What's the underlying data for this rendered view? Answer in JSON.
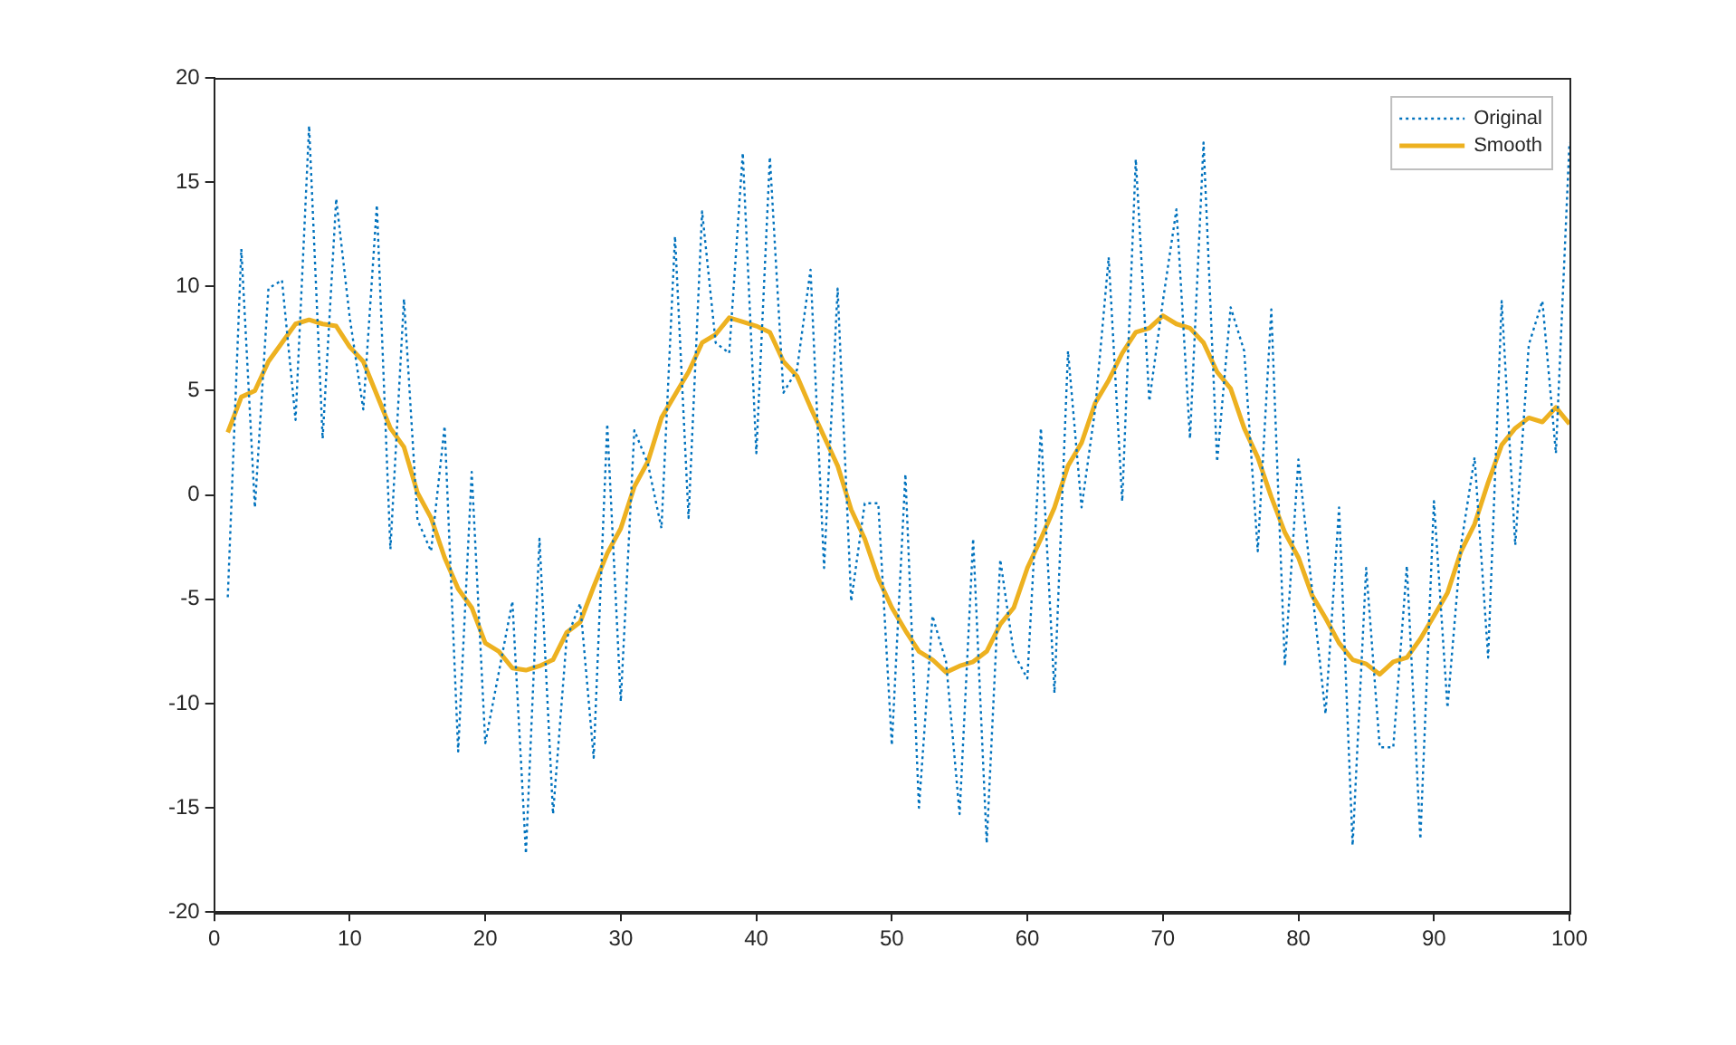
{
  "chart_data": {
    "type": "line",
    "x": [
      1,
      2,
      3,
      4,
      5,
      6,
      7,
      8,
      9,
      10,
      11,
      12,
      13,
      14,
      15,
      16,
      17,
      18,
      19,
      20,
      21,
      22,
      23,
      24,
      25,
      26,
      27,
      28,
      29,
      30,
      31,
      32,
      33,
      34,
      35,
      36,
      37,
      38,
      39,
      40,
      41,
      42,
      43,
      44,
      45,
      46,
      47,
      48,
      49,
      50,
      51,
      52,
      53,
      54,
      55,
      56,
      57,
      58,
      59,
      60,
      61,
      62,
      63,
      64,
      65,
      66,
      67,
      68,
      69,
      70,
      71,
      72,
      73,
      74,
      75,
      76,
      77,
      78,
      79,
      80,
      81,
      82,
      83,
      84,
      85,
      86,
      87,
      88,
      89,
      90,
      91,
      92,
      93,
      94,
      95,
      96,
      97,
      98,
      99,
      100
    ],
    "series": [
      {
        "name": "Original",
        "color": "#0072bd",
        "line_style": "dotted",
        "values": [
          -4.9,
          11.8,
          -0.6,
          9.9,
          10.3,
          3.6,
          17.7,
          2.7,
          14.2,
          8.5,
          4.1,
          13.9,
          -2.6,
          9.4,
          -1.2,
          -2.7,
          3.3,
          -12.3,
          1.1,
          -11.9,
          -8.5,
          -5.1,
          -17.2,
          -2.1,
          -15.3,
          -6.9,
          -5.2,
          -12.6,
          3.4,
          -9.9,
          3.1,
          1.5,
          -1.6,
          12.4,
          -1.1,
          13.6,
          7.3,
          6.8,
          16.4,
          2.0,
          16.2,
          4.9,
          6.0,
          10.8,
          -3.5,
          9.9,
          -5.1,
          -0.4,
          -0.4,
          -12.0,
          1.0,
          -15.0,
          -5.8,
          -8.0,
          -15.3,
          -2.1,
          -16.7,
          -3.1,
          -7.6,
          -8.8,
          3.2,
          -9.5,
          6.9,
          -0.6,
          4.1,
          11.4,
          -0.3,
          16.1,
          4.5,
          9.3,
          13.7,
          2.7,
          16.9,
          1.6,
          9.0,
          6.9,
          -2.7,
          8.9,
          -8.2,
          1.7,
          -4.5,
          -10.5,
          -0.6,
          -16.8,
          -3.5,
          -12.1,
          -12.1,
          -3.4,
          -16.5,
          -0.3,
          -10.2,
          -2.4,
          1.8,
          -7.8,
          9.3,
          -2.4,
          7.2,
          9.3,
          2.0,
          16.9
        ]
      },
      {
        "name": "Smooth",
        "color": "#edb120",
        "line_style": "solid",
        "values": [
          3.0,
          4.7,
          5.0,
          6.4,
          7.3,
          8.2,
          8.4,
          8.2,
          8.1,
          7.1,
          6.4,
          4.8,
          3.2,
          2.3,
          0.1,
          -1.1,
          -3.0,
          -4.5,
          -5.4,
          -7.1,
          -7.5,
          -8.3,
          -8.4,
          -8.2,
          -7.9,
          -6.6,
          -6.1,
          -4.4,
          -2.8,
          -1.6,
          0.4,
          1.6,
          3.7,
          4.8,
          5.9,
          7.3,
          7.7,
          8.5,
          8.3,
          8.1,
          7.8,
          6.4,
          5.7,
          4.2,
          2.8,
          1.4,
          -0.7,
          -2.1,
          -4.0,
          -5.4,
          -6.5,
          -7.5,
          -7.9,
          -8.5,
          -8.2,
          -8.0,
          -7.5,
          -6.2,
          -5.4,
          -3.5,
          -2.1,
          -0.6,
          1.4,
          2.5,
          4.4,
          5.5,
          6.8,
          7.8,
          8.0,
          8.6,
          8.2,
          8.0,
          7.3,
          5.9,
          5.1,
          3.2,
          1.8,
          -0.1,
          -1.8,
          -3.0,
          -4.8,
          -5.9,
          -7.1,
          -7.9,
          -8.1,
          -8.6,
          -8.0,
          -7.8,
          -6.9,
          -5.8,
          -4.7,
          -2.7,
          -1.4,
          0.6,
          2.4,
          3.2,
          3.7,
          3.5,
          4.2,
          3.4
        ]
      }
    ],
    "xlim": [
      0,
      100
    ],
    "xticks": [
      0,
      10,
      20,
      30,
      40,
      50,
      60,
      70,
      80,
      90,
      100
    ],
    "ylim": [
      -20,
      20
    ],
    "yticks": [
      -20,
      -15,
      -10,
      -5,
      0,
      5,
      10,
      15,
      20
    ],
    "grid": false,
    "legend": "top right",
    "marker": "none"
  }
}
